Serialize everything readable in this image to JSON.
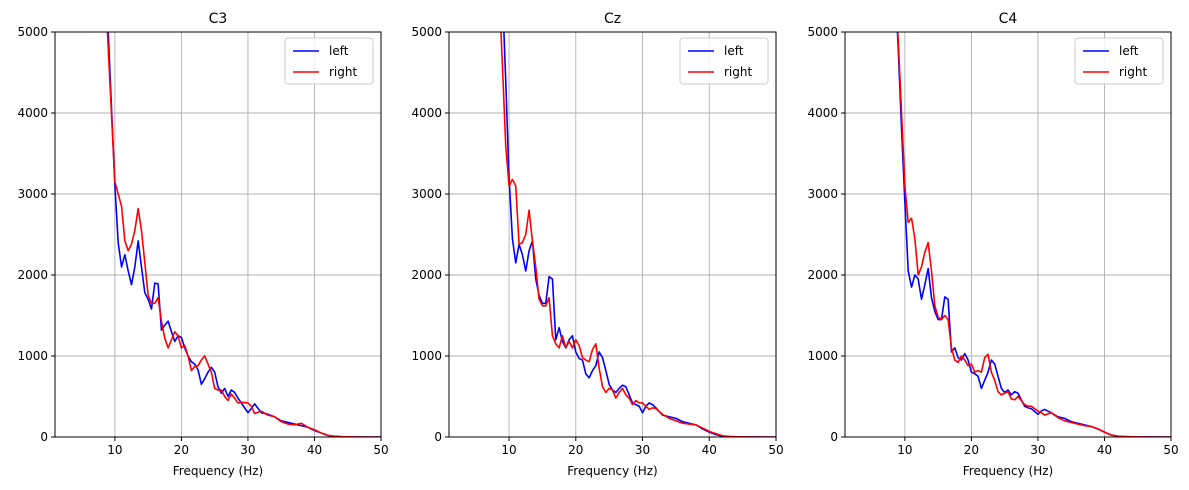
{
  "chart_data": [
    {
      "type": "line",
      "title": "C3",
      "xlabel": "Frequency (Hz)",
      "ylabel": "",
      "xlim": [
        1,
        50
      ],
      "ylim": [
        0,
        5000
      ],
      "xticks": [
        10,
        20,
        30,
        40,
        50
      ],
      "yticks": [
        0,
        1000,
        2000,
        3000,
        4000,
        5000
      ],
      "grid": true,
      "legend": "top-right",
      "series": [
        {
          "name": "left",
          "color": "#0000ff",
          "x": [
            8,
            9,
            10,
            10.5,
            11,
            11.5,
            12,
            12.5,
            13,
            13.5,
            14,
            14.5,
            15,
            15.5,
            16,
            16.5,
            17,
            17.5,
            18,
            18.5,
            19,
            19.5,
            20,
            20.5,
            21,
            21.5,
            22,
            22.5,
            23,
            23.5,
            24,
            24.5,
            25,
            25.5,
            26,
            26.5,
            27,
            27.5,
            28,
            28.5,
            29,
            30,
            30.5,
            31,
            32,
            33,
            34,
            35,
            36,
            37,
            38,
            39,
            40,
            41,
            42,
            43,
            44,
            45,
            46,
            48,
            50
          ],
          "y": [
            6500,
            5000,
            3100,
            2400,
            2100,
            2250,
            2050,
            1880,
            2100,
            2420,
            2100,
            1780,
            1700,
            1580,
            1900,
            1890,
            1320,
            1380,
            1430,
            1300,
            1180,
            1250,
            1230,
            1100,
            1000,
            930,
            900,
            830,
            650,
            720,
            800,
            860,
            800,
            620,
            540,
            600,
            500,
            580,
            550,
            480,
            420,
            300,
            350,
            410,
            300,
            280,
            250,
            200,
            180,
            160,
            140,
            120,
            80,
            50,
            20,
            8,
            4,
            2,
            1,
            0,
            0
          ]
        },
        {
          "name": "right",
          "color": "#ff0000",
          "x": [
            8,
            9,
            10,
            10.5,
            11,
            11.5,
            12,
            12.5,
            13,
            13.5,
            14,
            14.5,
            15,
            15.5,
            16,
            16.5,
            17,
            17.5,
            18,
            18.5,
            19,
            19.5,
            20,
            20.5,
            21,
            21.5,
            22,
            22.5,
            23,
            23.5,
            24,
            24.5,
            25,
            25.5,
            26,
            26.5,
            27,
            27.5,
            28,
            28.5,
            29,
            30,
            30.5,
            31,
            32,
            33,
            34,
            35,
            36,
            37,
            38,
            39,
            40,
            41,
            42,
            43,
            44,
            45,
            46,
            48,
            50
          ],
          "y": [
            6500,
            4800,
            3150,
            3000,
            2850,
            2420,
            2300,
            2380,
            2550,
            2820,
            2550,
            2150,
            1750,
            1650,
            1650,
            1720,
            1430,
            1220,
            1100,
            1200,
            1300,
            1250,
            1100,
            1130,
            1000,
            820,
            870,
            880,
            950,
            1000,
            900,
            800,
            600,
            580,
            580,
            500,
            450,
            530,
            480,
            420,
            430,
            420,
            380,
            290,
            320,
            270,
            250,
            190,
            160,
            150,
            170,
            120,
            90,
            50,
            20,
            8,
            4,
            2,
            1,
            0,
            0
          ]
        }
      ]
    },
    {
      "type": "line",
      "title": "Cz",
      "xlabel": "Frequency (Hz)",
      "ylabel": "",
      "xlim": [
        1,
        50
      ],
      "ylim": [
        0,
        5000
      ],
      "xticks": [
        10,
        20,
        30,
        40,
        50
      ],
      "yticks": [
        0,
        1000,
        2000,
        3000,
        4000,
        5000
      ],
      "grid": true,
      "legend": "top-right",
      "series": [
        {
          "name": "left",
          "color": "#0000ff",
          "x": [
            8,
            9,
            9.5,
            10,
            10.5,
            11,
            11.5,
            12,
            12.5,
            13,
            13.5,
            14,
            14.5,
            15,
            15.5,
            16,
            16.5,
            17,
            17.5,
            18,
            18.5,
            19,
            19.5,
            20,
            20.5,
            21,
            21.5,
            22,
            22.5,
            23,
            23.5,
            24,
            24.5,
            25,
            25.5,
            26,
            26.5,
            27,
            27.5,
            28,
            28.5,
            29,
            29.5,
            30,
            30.5,
            31,
            31.5,
            32,
            33,
            34,
            35,
            36,
            37,
            38,
            39,
            40,
            41,
            42,
            43,
            44,
            46,
            48,
            50
          ],
          "y": [
            6500,
            5500,
            4400,
            3200,
            2450,
            2150,
            2380,
            2250,
            2050,
            2300,
            2420,
            1950,
            1750,
            1650,
            1650,
            1980,
            1950,
            1200,
            1350,
            1180,
            1100,
            1200,
            1250,
            1050,
            970,
            950,
            780,
            730,
            820,
            880,
            1050,
            980,
            820,
            650,
            580,
            550,
            600,
            640,
            620,
            520,
            420,
            400,
            380,
            300,
            380,
            420,
            400,
            360,
            270,
            250,
            230,
            190,
            170,
            150,
            100,
            60,
            30,
            10,
            5,
            3,
            1,
            0,
            0
          ]
        },
        {
          "name": "right",
          "color": "#ff0000",
          "x": [
            8,
            9,
            9.5,
            10,
            10.5,
            11,
            11.5,
            12,
            12.5,
            13,
            13.5,
            14,
            14.5,
            15,
            15.5,
            16,
            16.5,
            17,
            17.5,
            18,
            18.5,
            19,
            19.5,
            20,
            20.5,
            21,
            21.5,
            22,
            22.5,
            23,
            23.5,
            24,
            24.5,
            25,
            25.5,
            26,
            26.5,
            27,
            27.5,
            28,
            28.5,
            29,
            29.5,
            30,
            30.5,
            31,
            31.5,
            32,
            33,
            34,
            35,
            36,
            37,
            38,
            39,
            40,
            41,
            42,
            43,
            44,
            46,
            48,
            50
          ],
          "y": [
            6500,
            4600,
            3600,
            3100,
            3180,
            3100,
            2380,
            2400,
            2500,
            2800,
            2420,
            2100,
            1700,
            1620,
            1620,
            1720,
            1250,
            1150,
            1100,
            1250,
            1100,
            1180,
            1100,
            1200,
            1130,
            980,
            950,
            930,
            1080,
            1150,
            850,
            620,
            550,
            600,
            580,
            480,
            550,
            600,
            520,
            480,
            400,
            450,
            420,
            420,
            380,
            340,
            360,
            350,
            280,
            230,
            200,
            170,
            160,
            150,
            110,
            70,
            40,
            15,
            5,
            3,
            1,
            0,
            0
          ]
        }
      ]
    },
    {
      "type": "line",
      "title": "C4",
      "xlabel": "Frequency (Hz)",
      "ylabel": "",
      "xlim": [
        1,
        50
      ],
      "ylim": [
        0,
        5000
      ],
      "xticks": [
        10,
        20,
        30,
        40,
        50
      ],
      "yticks": [
        0,
        1000,
        2000,
        3000,
        4000,
        5000
      ],
      "grid": true,
      "legend": "top-right",
      "series": [
        {
          "name": "left",
          "color": "#0000ff",
          "x": [
            8,
            9,
            9.5,
            10,
            10.5,
            11,
            11.5,
            12,
            12.5,
            13,
            13.5,
            14,
            14.5,
            15,
            15.5,
            16,
            16.5,
            17,
            17.5,
            18,
            18.5,
            19,
            19.5,
            20,
            20.5,
            21,
            21.5,
            22,
            22.5,
            23,
            23.5,
            24,
            24.5,
            25,
            25.5,
            26,
            26.5,
            27,
            27.5,
            28,
            28.5,
            29,
            30,
            30.5,
            31,
            32,
            33,
            34,
            35,
            36,
            37,
            38,
            39,
            40,
            41,
            42,
            43,
            44,
            46,
            48,
            50
          ],
          "y": [
            6500,
            4800,
            3800,
            2900,
            2050,
            1850,
            2000,
            1950,
            1700,
            1880,
            2080,
            1720,
            1550,
            1450,
            1450,
            1730,
            1700,
            1050,
            1100,
            980,
            950,
            1030,
            950,
            800,
            780,
            750,
            600,
            700,
            800,
            950,
            900,
            750,
            600,
            550,
            580,
            520,
            560,
            540,
            460,
            380,
            360,
            350,
            280,
            320,
            340,
            300,
            250,
            230,
            190,
            170,
            150,
            130,
            100,
            60,
            25,
            10,
            5,
            3,
            1,
            0,
            0
          ]
        },
        {
          "name": "right",
          "color": "#ff0000",
          "x": [
            8,
            9,
            9.5,
            10,
            10.5,
            11,
            11.5,
            12,
            12.5,
            13,
            13.5,
            14,
            14.5,
            15,
            15.5,
            16,
            16.5,
            17,
            17.5,
            18,
            18.5,
            19,
            19.5,
            20,
            20.5,
            21,
            21.5,
            22,
            22.5,
            23,
            23.5,
            24,
            24.5,
            25,
            25.5,
            26,
            26.5,
            27,
            27.5,
            28,
            28.5,
            29,
            30,
            30.5,
            31,
            32,
            33,
            34,
            35,
            36,
            37,
            38,
            39,
            40,
            41,
            42,
            43,
            44,
            46,
            48,
            50
          ],
          "y": [
            6500,
            4900,
            4000,
            3100,
            2650,
            2700,
            2450,
            2000,
            2100,
            2280,
            2400,
            2050,
            1620,
            1480,
            1450,
            1500,
            1450,
            1100,
            950,
            920,
            1000,
            950,
            880,
            900,
            800,
            820,
            800,
            980,
            1020,
            800,
            700,
            560,
            520,
            540,
            560,
            470,
            460,
            500,
            450,
            400,
            380,
            380,
            320,
            300,
            270,
            300,
            240,
            200,
            180,
            160,
            140,
            130,
            100,
            60,
            25,
            10,
            5,
            3,
            1,
            0,
            0
          ]
        }
      ]
    }
  ]
}
